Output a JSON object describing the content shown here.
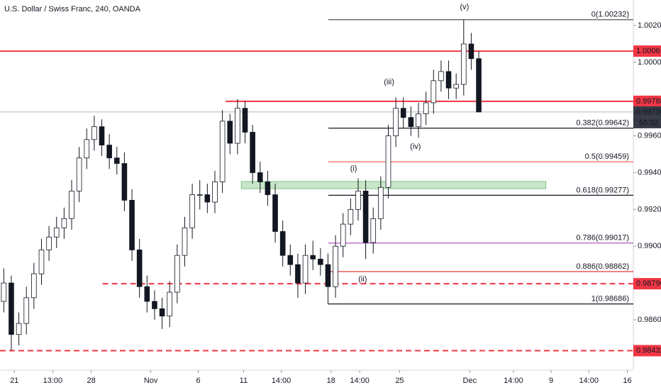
{
  "title": "U.S. Dollar / Swiss Franc, 240, OANDA",
  "chart_data": {
    "type": "candlestick",
    "xlim": [
      -0.5,
      83.5
    ],
    "ylim": [
      0.98326,
      1.00339
    ],
    "xticks": [
      {
        "value": 1.4,
        "label": "21"
      },
      {
        "value": 6.5,
        "label": "13:00"
      },
      {
        "value": 11.6,
        "label": "28"
      },
      {
        "value": 19.5,
        "label": "Nov"
      },
      {
        "value": 25.8,
        "label": "6"
      },
      {
        "value": 31.8,
        "label": "11"
      },
      {
        "value": 36.8,
        "label": "14:00"
      },
      {
        "value": 43.4,
        "label": "18"
      },
      {
        "value": 47.2,
        "label": "14:00"
      },
      {
        "value": 52.5,
        "label": "25"
      },
      {
        "value": 61.8,
        "label": "Dec"
      },
      {
        "value": 67.6,
        "label": "14:00"
      },
      {
        "value": 72.6,
        "label": "9"
      },
      {
        "value": 77.6,
        "label": "14:00"
      },
      {
        "value": 82.7,
        "label": "16"
      }
    ],
    "yticks": [
      {
        "value": 1.002,
        "label": "1.00200"
      },
      {
        "value": 1.0,
        "label": "1.00000"
      },
      {
        "value": 0.996,
        "label": "0.99600"
      },
      {
        "value": 0.994,
        "label": "0.99400"
      },
      {
        "value": 0.992,
        "label": "0.99200"
      },
      {
        "value": 0.99,
        "label": "0.99000"
      },
      {
        "value": 0.986,
        "label": "0.98600"
      }
    ],
    "up_color": "#ffffff",
    "down_color": "#131722",
    "outline": "#131722",
    "open": [
      0.987,
      0.988,
      0.9852,
      0.9858,
      0.9872,
      0.9885,
      0.9898,
      0.9905,
      0.991,
      0.9915,
      0.993,
      0.9948,
      0.9958,
      0.9965,
      0.9955,
      0.9948,
      0.9945,
      0.9925,
      0.9898,
      0.9878,
      0.987,
      0.9866,
      0.9862,
      0.9875,
      0.9895,
      0.991,
      0.9928,
      0.9928,
      0.9924,
      0.9935,
      0.9968,
      0.9956,
      0.9975,
      0.9962,
      0.994,
      0.9935,
      0.9928,
      0.9908,
      0.9895,
      0.989,
      0.988,
      0.9895,
      0.9893,
      0.989,
      0.9878,
      0.99,
      0.9912,
      0.992,
      0.993,
      0.9902,
      0.9915,
      0.9932,
      0.996,
      0.9975,
      0.997,
      0.9965,
      0.9972,
      0.9978,
      0.999,
      0.9995,
      0.9986,
      0.9988,
      1.001,
      1.0002
    ],
    "high": [
      0.9888,
      0.9884,
      0.9864,
      0.9878,
      0.9891,
      0.9904,
      0.9911,
      0.9916,
      0.9921,
      0.9936,
      0.9954,
      0.9964,
      0.9971,
      0.9969,
      0.9961,
      0.9954,
      0.9951,
      0.9931,
      0.9904,
      0.9884,
      0.9876,
      0.9872,
      0.9881,
      0.9901,
      0.9916,
      0.9934,
      0.9936,
      0.9934,
      0.9941,
      0.9974,
      0.9972,
      0.998,
      0.9979,
      0.9966,
      0.9946,
      0.9941,
      0.9934,
      0.9914,
      0.9901,
      0.9896,
      0.9901,
      0.9903,
      0.9899,
      0.9896,
      0.9906,
      0.9918,
      0.9926,
      0.9937,
      0.9936,
      0.9921,
      0.9938,
      0.9966,
      0.9981,
      0.9981,
      0.9976,
      0.9978,
      0.9984,
      0.9996,
      1.0001,
      1.0001,
      0.9994,
      1.00232,
      1.0016,
      1.0006
    ],
    "low": [
      0.9864,
      0.98432,
      0.9846,
      0.9852,
      0.9866,
      0.9879,
      0.9892,
      0.9899,
      0.9904,
      0.9909,
      0.9924,
      0.9942,
      0.9952,
      0.9949,
      0.9942,
      0.9939,
      0.9919,
      0.9892,
      0.9872,
      0.9864,
      0.986,
      0.9855,
      0.9856,
      0.9869,
      0.9889,
      0.9904,
      0.992,
      0.9918,
      0.9918,
      0.9929,
      0.995,
      0.995,
      0.9956,
      0.9934,
      0.9929,
      0.9922,
      0.9902,
      0.9889,
      0.9884,
      0.9872,
      0.9874,
      0.9887,
      0.9884,
      0.98686,
      0.9872,
      0.9894,
      0.9906,
      0.9914,
      0.9893,
      0.9896,
      0.9909,
      0.9926,
      0.9954,
      0.9964,
      0.996,
      0.9959,
      0.9966,
      0.9972,
      0.9984,
      0.998,
      0.998,
      0.9982,
      0.9996,
      0.9973
    ],
    "close": [
      0.988,
      0.9852,
      0.9858,
      0.9872,
      0.9885,
      0.9898,
      0.9905,
      0.991,
      0.9915,
      0.993,
      0.9948,
      0.9958,
      0.9965,
      0.9955,
      0.9948,
      0.9945,
      0.9925,
      0.9898,
      0.9878,
      0.987,
      0.9866,
      0.9862,
      0.9875,
      0.9895,
      0.991,
      0.9928,
      0.9928,
      0.9924,
      0.9935,
      0.9968,
      0.9956,
      0.9975,
      0.9962,
      0.994,
      0.9935,
      0.9928,
      0.9908,
      0.9895,
      0.989,
      0.988,
      0.9895,
      0.9893,
      0.989,
      0.9878,
      0.99,
      0.9912,
      0.992,
      0.993,
      0.9902,
      0.9915,
      0.9932,
      0.996,
      0.9975,
      0.997,
      0.9965,
      0.9972,
      0.9978,
      0.999,
      0.9995,
      0.9986,
      0.9988,
      1.001,
      1.0002,
      0.9973
    ],
    "levels": [
      {
        "value": 1.00061,
        "label": "1.00061",
        "color": "#f23645",
        "dashed": false,
        "from": -0.5
      },
      {
        "value": 0.99788,
        "label": "0.99788",
        "color": "#f23645",
        "dashed": false,
        "from": 29.4
      },
      {
        "value": 0.98796,
        "label": "0.98796",
        "color": "#f23645",
        "dashed": true,
        "from": 13.1
      },
      {
        "value": 0.98432,
        "label": "0.98432",
        "color": "#f23645",
        "dashed": true,
        "from": -0.5
      }
    ],
    "current_price": {
      "value": 0.9973,
      "label": "0.99730",
      "countdown": "55:32",
      "color": "#363a45"
    },
    "fib_from": 43.05,
    "fib": [
      {
        "value": 1.00232,
        "label": "0(1.00232)",
        "color": "#555555"
      },
      {
        "value": 0.99642,
        "label": "0.382(0.99642)",
        "color": "#131722"
      },
      {
        "value": 0.99459,
        "label": "0.5(0.99459)",
        "color": "#f25a4a"
      },
      {
        "value": 0.99277,
        "label": "0.618(0.99277)",
        "color": "#131722"
      },
      {
        "value": 0.99017,
        "label": "0.786(0.99017)",
        "color": "#ab47bc"
      },
      {
        "value": 0.98862,
        "label": "0.886(0.98862)",
        "color": "#e53935"
      },
      {
        "value": 0.98686,
        "label": "1(0.98686)",
        "color": "#131722"
      }
    ],
    "zone": {
      "from": 31.5,
      "to": 71.9,
      "top": 0.99352,
      "bottom": 0.99313,
      "color": "#a5d6a7"
    },
    "annotations": [
      {
        "text": "(v)",
        "x": 61.1,
        "y": 1.003
      },
      {
        "text": "(iii)",
        "x": 51.1,
        "y": 0.99892
      },
      {
        "text": "(i)",
        "x": 46.4,
        "y": 0.99421
      },
      {
        "text": "(iv)",
        "x": 54.6,
        "y": 0.99541
      },
      {
        "text": "(ii)",
        "x": 47.6,
        "y": 0.9882
      }
    ]
  }
}
